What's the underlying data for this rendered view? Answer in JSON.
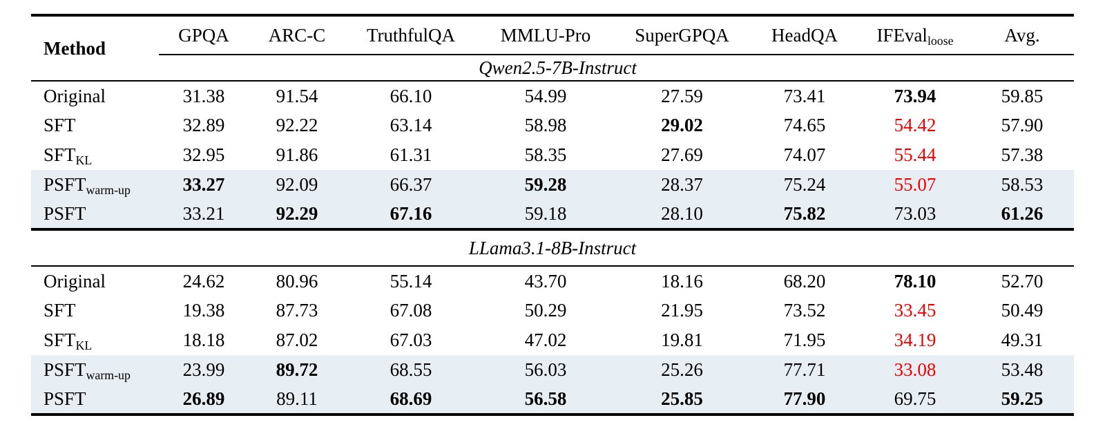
{
  "colors": {
    "highlight_row": "#e7eef4",
    "regression_red": "#f20000",
    "rule_black": "#000000"
  },
  "table": {
    "method_header": "Method",
    "columns": [
      {
        "label": "GPQA",
        "sub": ""
      },
      {
        "label": "ARC-C",
        "sub": ""
      },
      {
        "label": "TruthfulQA",
        "sub": ""
      },
      {
        "label": "MMLU-Pro",
        "sub": ""
      },
      {
        "label": "SuperGPQA",
        "sub": ""
      },
      {
        "label": "HeadQA",
        "sub": ""
      },
      {
        "label": "IFEval",
        "sub": "loose"
      },
      {
        "label": "Avg.",
        "sub": ""
      }
    ],
    "sections": [
      {
        "model": "Qwen2.5-7B-Instruct",
        "rows": [
          {
            "method": {
              "label": "Original",
              "sub": ""
            },
            "highlight": false,
            "cells": [
              {
                "v": "31.38",
                "style": "normal"
              },
              {
                "v": "91.54",
                "style": "normal"
              },
              {
                "v": "66.10",
                "style": "normal"
              },
              {
                "v": "54.99",
                "style": "normal"
              },
              {
                "v": "27.59",
                "style": "normal"
              },
              {
                "v": "73.41",
                "style": "normal"
              },
              {
                "v": "73.94",
                "style": "bold"
              },
              {
                "v": "59.85",
                "style": "normal"
              }
            ]
          },
          {
            "method": {
              "label": "SFT",
              "sub": ""
            },
            "highlight": false,
            "cells": [
              {
                "v": "32.89",
                "style": "normal"
              },
              {
                "v": "92.22",
                "style": "normal"
              },
              {
                "v": "63.14",
                "style": "normal"
              },
              {
                "v": "58.98",
                "style": "normal"
              },
              {
                "v": "29.02",
                "style": "bold"
              },
              {
                "v": "74.65",
                "style": "normal"
              },
              {
                "v": "54.42",
                "style": "red"
              },
              {
                "v": "57.90",
                "style": "normal"
              }
            ]
          },
          {
            "method": {
              "label": "SFT",
              "sub": "KL"
            },
            "highlight": false,
            "cells": [
              {
                "v": "32.95",
                "style": "normal"
              },
              {
                "v": "91.86",
                "style": "normal"
              },
              {
                "v": "61.31",
                "style": "normal"
              },
              {
                "v": "58.35",
                "style": "normal"
              },
              {
                "v": "27.69",
                "style": "normal"
              },
              {
                "v": "74.07",
                "style": "normal"
              },
              {
                "v": "55.44",
                "style": "red"
              },
              {
                "v": "57.38",
                "style": "normal"
              }
            ]
          },
          {
            "method": {
              "label": "PSFT",
              "sub": "warm-up"
            },
            "highlight": true,
            "cells": [
              {
                "v": "33.27",
                "style": "bold"
              },
              {
                "v": "92.09",
                "style": "normal"
              },
              {
                "v": "66.37",
                "style": "normal"
              },
              {
                "v": "59.28",
                "style": "bold"
              },
              {
                "v": "28.37",
                "style": "normal"
              },
              {
                "v": "75.24",
                "style": "normal"
              },
              {
                "v": "55.07",
                "style": "red"
              },
              {
                "v": "58.53",
                "style": "normal"
              }
            ]
          },
          {
            "method": {
              "label": "PSFT",
              "sub": ""
            },
            "highlight": true,
            "cells": [
              {
                "v": "33.21",
                "style": "normal"
              },
              {
                "v": "92.29",
                "style": "bold"
              },
              {
                "v": "67.16",
                "style": "bold"
              },
              {
                "v": "59.18",
                "style": "normal"
              },
              {
                "v": "28.10",
                "style": "normal"
              },
              {
                "v": "75.82",
                "style": "bold"
              },
              {
                "v": "73.03",
                "style": "normal"
              },
              {
                "v": "61.26",
                "style": "bold"
              }
            ]
          }
        ]
      },
      {
        "model": "LLama3.1-8B-Instruct",
        "rows": [
          {
            "method": {
              "label": "Original",
              "sub": ""
            },
            "highlight": false,
            "cells": [
              {
                "v": "24.62",
                "style": "normal"
              },
              {
                "v": "80.96",
                "style": "normal"
              },
              {
                "v": "55.14",
                "style": "normal"
              },
              {
                "v": "43.70",
                "style": "normal"
              },
              {
                "v": "18.16",
                "style": "normal"
              },
              {
                "v": "68.20",
                "style": "normal"
              },
              {
                "v": "78.10",
                "style": "bold"
              },
              {
                "v": "52.70",
                "style": "normal"
              }
            ]
          },
          {
            "method": {
              "label": "SFT",
              "sub": ""
            },
            "highlight": false,
            "cells": [
              {
                "v": "19.38",
                "style": "normal"
              },
              {
                "v": "87.73",
                "style": "normal"
              },
              {
                "v": "67.08",
                "style": "normal"
              },
              {
                "v": "50.29",
                "style": "normal"
              },
              {
                "v": "21.95",
                "style": "normal"
              },
              {
                "v": "73.52",
                "style": "normal"
              },
              {
                "v": "33.45",
                "style": "red"
              },
              {
                "v": "50.49",
                "style": "normal"
              }
            ]
          },
          {
            "method": {
              "label": "SFT",
              "sub": "KL"
            },
            "highlight": false,
            "cells": [
              {
                "v": "18.18",
                "style": "normal"
              },
              {
                "v": "87.02",
                "style": "normal"
              },
              {
                "v": "67.03",
                "style": "normal"
              },
              {
                "v": "47.02",
                "style": "normal"
              },
              {
                "v": "19.81",
                "style": "normal"
              },
              {
                "v": "71.95",
                "style": "normal"
              },
              {
                "v": "34.19",
                "style": "red"
              },
              {
                "v": "49.31",
                "style": "normal"
              }
            ]
          },
          {
            "method": {
              "label": "PSFT",
              "sub": "warm-up"
            },
            "highlight": true,
            "cells": [
              {
                "v": "23.99",
                "style": "normal"
              },
              {
                "v": "89.72",
                "style": "bold"
              },
              {
                "v": "68.55",
                "style": "normal"
              },
              {
                "v": "56.03",
                "style": "normal"
              },
              {
                "v": "25.26",
                "style": "normal"
              },
              {
                "v": "77.71",
                "style": "normal"
              },
              {
                "v": "33.08",
                "style": "red"
              },
              {
                "v": "53.48",
                "style": "normal"
              }
            ]
          },
          {
            "method": {
              "label": "PSFT",
              "sub": ""
            },
            "highlight": true,
            "cells": [
              {
                "v": "26.89",
                "style": "bold"
              },
              {
                "v": "89.11",
                "style": "normal"
              },
              {
                "v": "68.69",
                "style": "bold"
              },
              {
                "v": "56.58",
                "style": "bold"
              },
              {
                "v": "25.85",
                "style": "bold"
              },
              {
                "v": "77.90",
                "style": "bold"
              },
              {
                "v": "69.75",
                "style": "normal"
              },
              {
                "v": "59.25",
                "style": "bold"
              }
            ]
          }
        ]
      }
    ]
  }
}
